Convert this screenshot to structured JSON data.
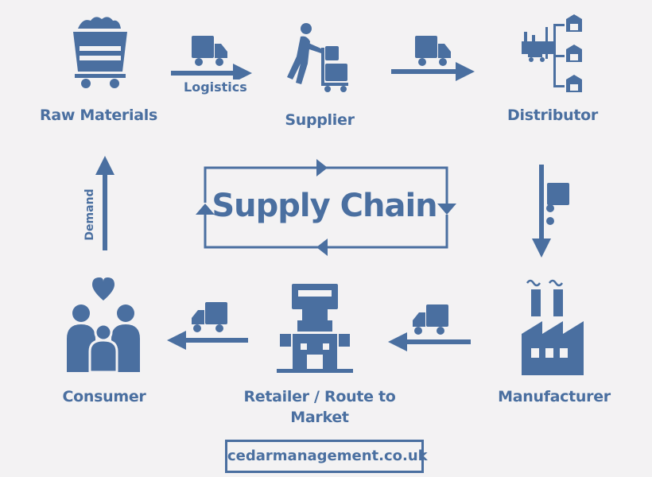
{
  "title": "Supply Chain",
  "nodes": {
    "raw_materials": "Raw Materials",
    "supplier": "Supplier",
    "distributor": "Distributor",
    "manufacturer": "Manufacturer",
    "retailer_line1": "Retailer /  Route  to",
    "retailer_line2": "Market",
    "consumer": "Consumer"
  },
  "edges": {
    "logistics": "Logistics",
    "demand": "Demand"
  },
  "footer": "cedarmanagement.co.uk",
  "colors": {
    "primary": "#4a6fa0",
    "background": "#f3f2f3"
  },
  "icons": [
    "mine-cart-icon",
    "truck-icon",
    "worker-trolley-icon",
    "distribution-tree-icon",
    "factory-icon",
    "retail-store-icon",
    "family-heart-icon",
    "arrow-icon",
    "cycle-arrows-icon"
  ]
}
